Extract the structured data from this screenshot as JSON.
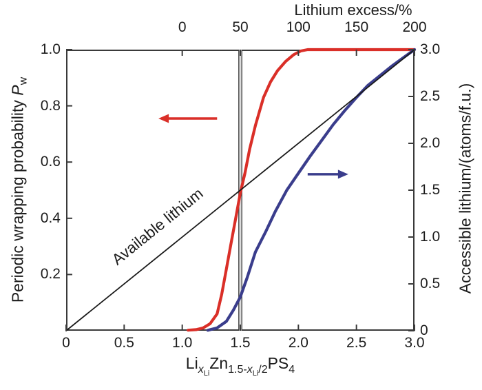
{
  "chart_data": {
    "type": "line",
    "top_axis_title": "Lithium excess/%",
    "left_axis_title_parts": {
      "text": "Periodic wrapping probability ",
      "symbol": "P",
      "subscript": "w"
    },
    "right_axis_title": "Accessible lithium/(atoms/f.u.)",
    "bottom_formula_parts": {
      "li": "Li",
      "x1": "x",
      "x1sub": "Li",
      "zn": "Zn",
      "mid": "1.5-",
      "x2": "x",
      "x2sub": "Li",
      "slash2": "/2",
      "ps": "PS",
      "four": "4"
    },
    "x_range": [
      0,
      3
    ],
    "y_left_range": [
      0,
      1
    ],
    "y_right_range": [
      0,
      3
    ],
    "grid": false,
    "legend": "none",
    "bottom_ticks": [
      {
        "x": 0,
        "label": "0"
      },
      {
        "x": 0.5,
        "label": "0.5"
      },
      {
        "x": 1.0,
        "label": "1.0"
      },
      {
        "x": 1.5,
        "label": "1.5"
      },
      {
        "x": 2.0,
        "label": "2.0"
      },
      {
        "x": 2.5,
        "label": "2.5"
      },
      {
        "x": 3.0,
        "label": "3.0"
      }
    ],
    "top_ticks": [
      {
        "x": 1.0,
        "label": "0"
      },
      {
        "x": 1.5,
        "label": "50"
      },
      {
        "x": 2.0,
        "label": "100"
      },
      {
        "x": 2.5,
        "label": "150"
      },
      {
        "x": 3.0,
        "label": "200"
      }
    ],
    "left_ticks": [
      {
        "y": 1.0,
        "label": "1.0"
      },
      {
        "y": 0.8,
        "label": "0.8"
      },
      {
        "y": 0.6,
        "label": "0.6"
      },
      {
        "y": 0.4,
        "label": "0.4"
      },
      {
        "y": 0.2,
        "label": "0.2"
      }
    ],
    "right_ticks": [
      {
        "y": 3.0,
        "label": "3.0"
      },
      {
        "y": 2.5,
        "label": "2.5"
      },
      {
        "y": 2.0,
        "label": "2.0"
      },
      {
        "y": 1.5,
        "label": "1.5"
      },
      {
        "y": 1.0,
        "label": "1.0"
      },
      {
        "y": 0.5,
        "label": "0.5"
      },
      {
        "y": 0,
        "label": "0"
      }
    ],
    "series": [
      {
        "name": "periodic-wrapping-probability",
        "axis": "left",
        "color": "#da2f28",
        "width": 4.2,
        "points": [
          [
            1.05,
            0.002
          ],
          [
            1.12,
            0.004
          ],
          [
            1.18,
            0.01
          ],
          [
            1.24,
            0.025
          ],
          [
            1.3,
            0.06
          ],
          [
            1.34,
            0.13
          ],
          [
            1.38,
            0.22
          ],
          [
            1.42,
            0.31
          ],
          [
            1.46,
            0.4
          ],
          [
            1.5,
            0.49
          ],
          [
            1.54,
            0.56
          ],
          [
            1.58,
            0.645
          ],
          [
            1.63,
            0.73
          ],
          [
            1.7,
            0.83
          ],
          [
            1.76,
            0.885
          ],
          [
            1.82,
            0.925
          ],
          [
            1.89,
            0.958
          ],
          [
            1.96,
            0.982
          ],
          [
            2.02,
            0.995
          ],
          [
            2.08,
            1.0
          ],
          [
            3.0,
            1.0
          ]
        ]
      },
      {
        "name": "accessible-lithium",
        "axis": "right",
        "color": "#3a3d8c",
        "width": 4.2,
        "points": [
          [
            1.22,
            0.005
          ],
          [
            1.3,
            0.03
          ],
          [
            1.38,
            0.1
          ],
          [
            1.44,
            0.22
          ],
          [
            1.5,
            0.36
          ],
          [
            1.56,
            0.57
          ],
          [
            1.63,
            0.84
          ],
          [
            1.72,
            1.06
          ],
          [
            1.8,
            1.27
          ],
          [
            1.9,
            1.5
          ],
          [
            2.0,
            1.68
          ],
          [
            2.1,
            1.86
          ],
          [
            2.2,
            2.03
          ],
          [
            2.3,
            2.2
          ],
          [
            2.4,
            2.35
          ],
          [
            2.5,
            2.49
          ],
          [
            2.6,
            2.62
          ],
          [
            2.7,
            2.72
          ],
          [
            2.8,
            2.82
          ],
          [
            2.9,
            2.91
          ],
          [
            3.0,
            3.0
          ]
        ]
      },
      {
        "name": "available-lithium-line",
        "axis": "right",
        "color": "#1a1a1a",
        "width": 1.8,
        "points": [
          [
            0,
            0
          ],
          [
            3,
            3
          ]
        ]
      }
    ],
    "annotations": {
      "diagonal_label": "Available lithium",
      "vline_x": 1.5,
      "vline_fill": "#dcdcdc",
      "vline_edge": "#3a3a3a",
      "arrows": [
        {
          "name": "red-left-arrow",
          "color": "#da2f28",
          "axis": "left",
          "y": 0.755,
          "x_tail": 1.3,
          "x_tip": 0.795,
          "dir": "left"
        },
        {
          "name": "blue-right-arrow",
          "color": "#3a3d8c",
          "axis": "right",
          "y": 1.67,
          "x_tail": 2.08,
          "x_tip": 2.43,
          "dir": "right"
        }
      ]
    },
    "frame_color": "#3a3a3a"
  }
}
